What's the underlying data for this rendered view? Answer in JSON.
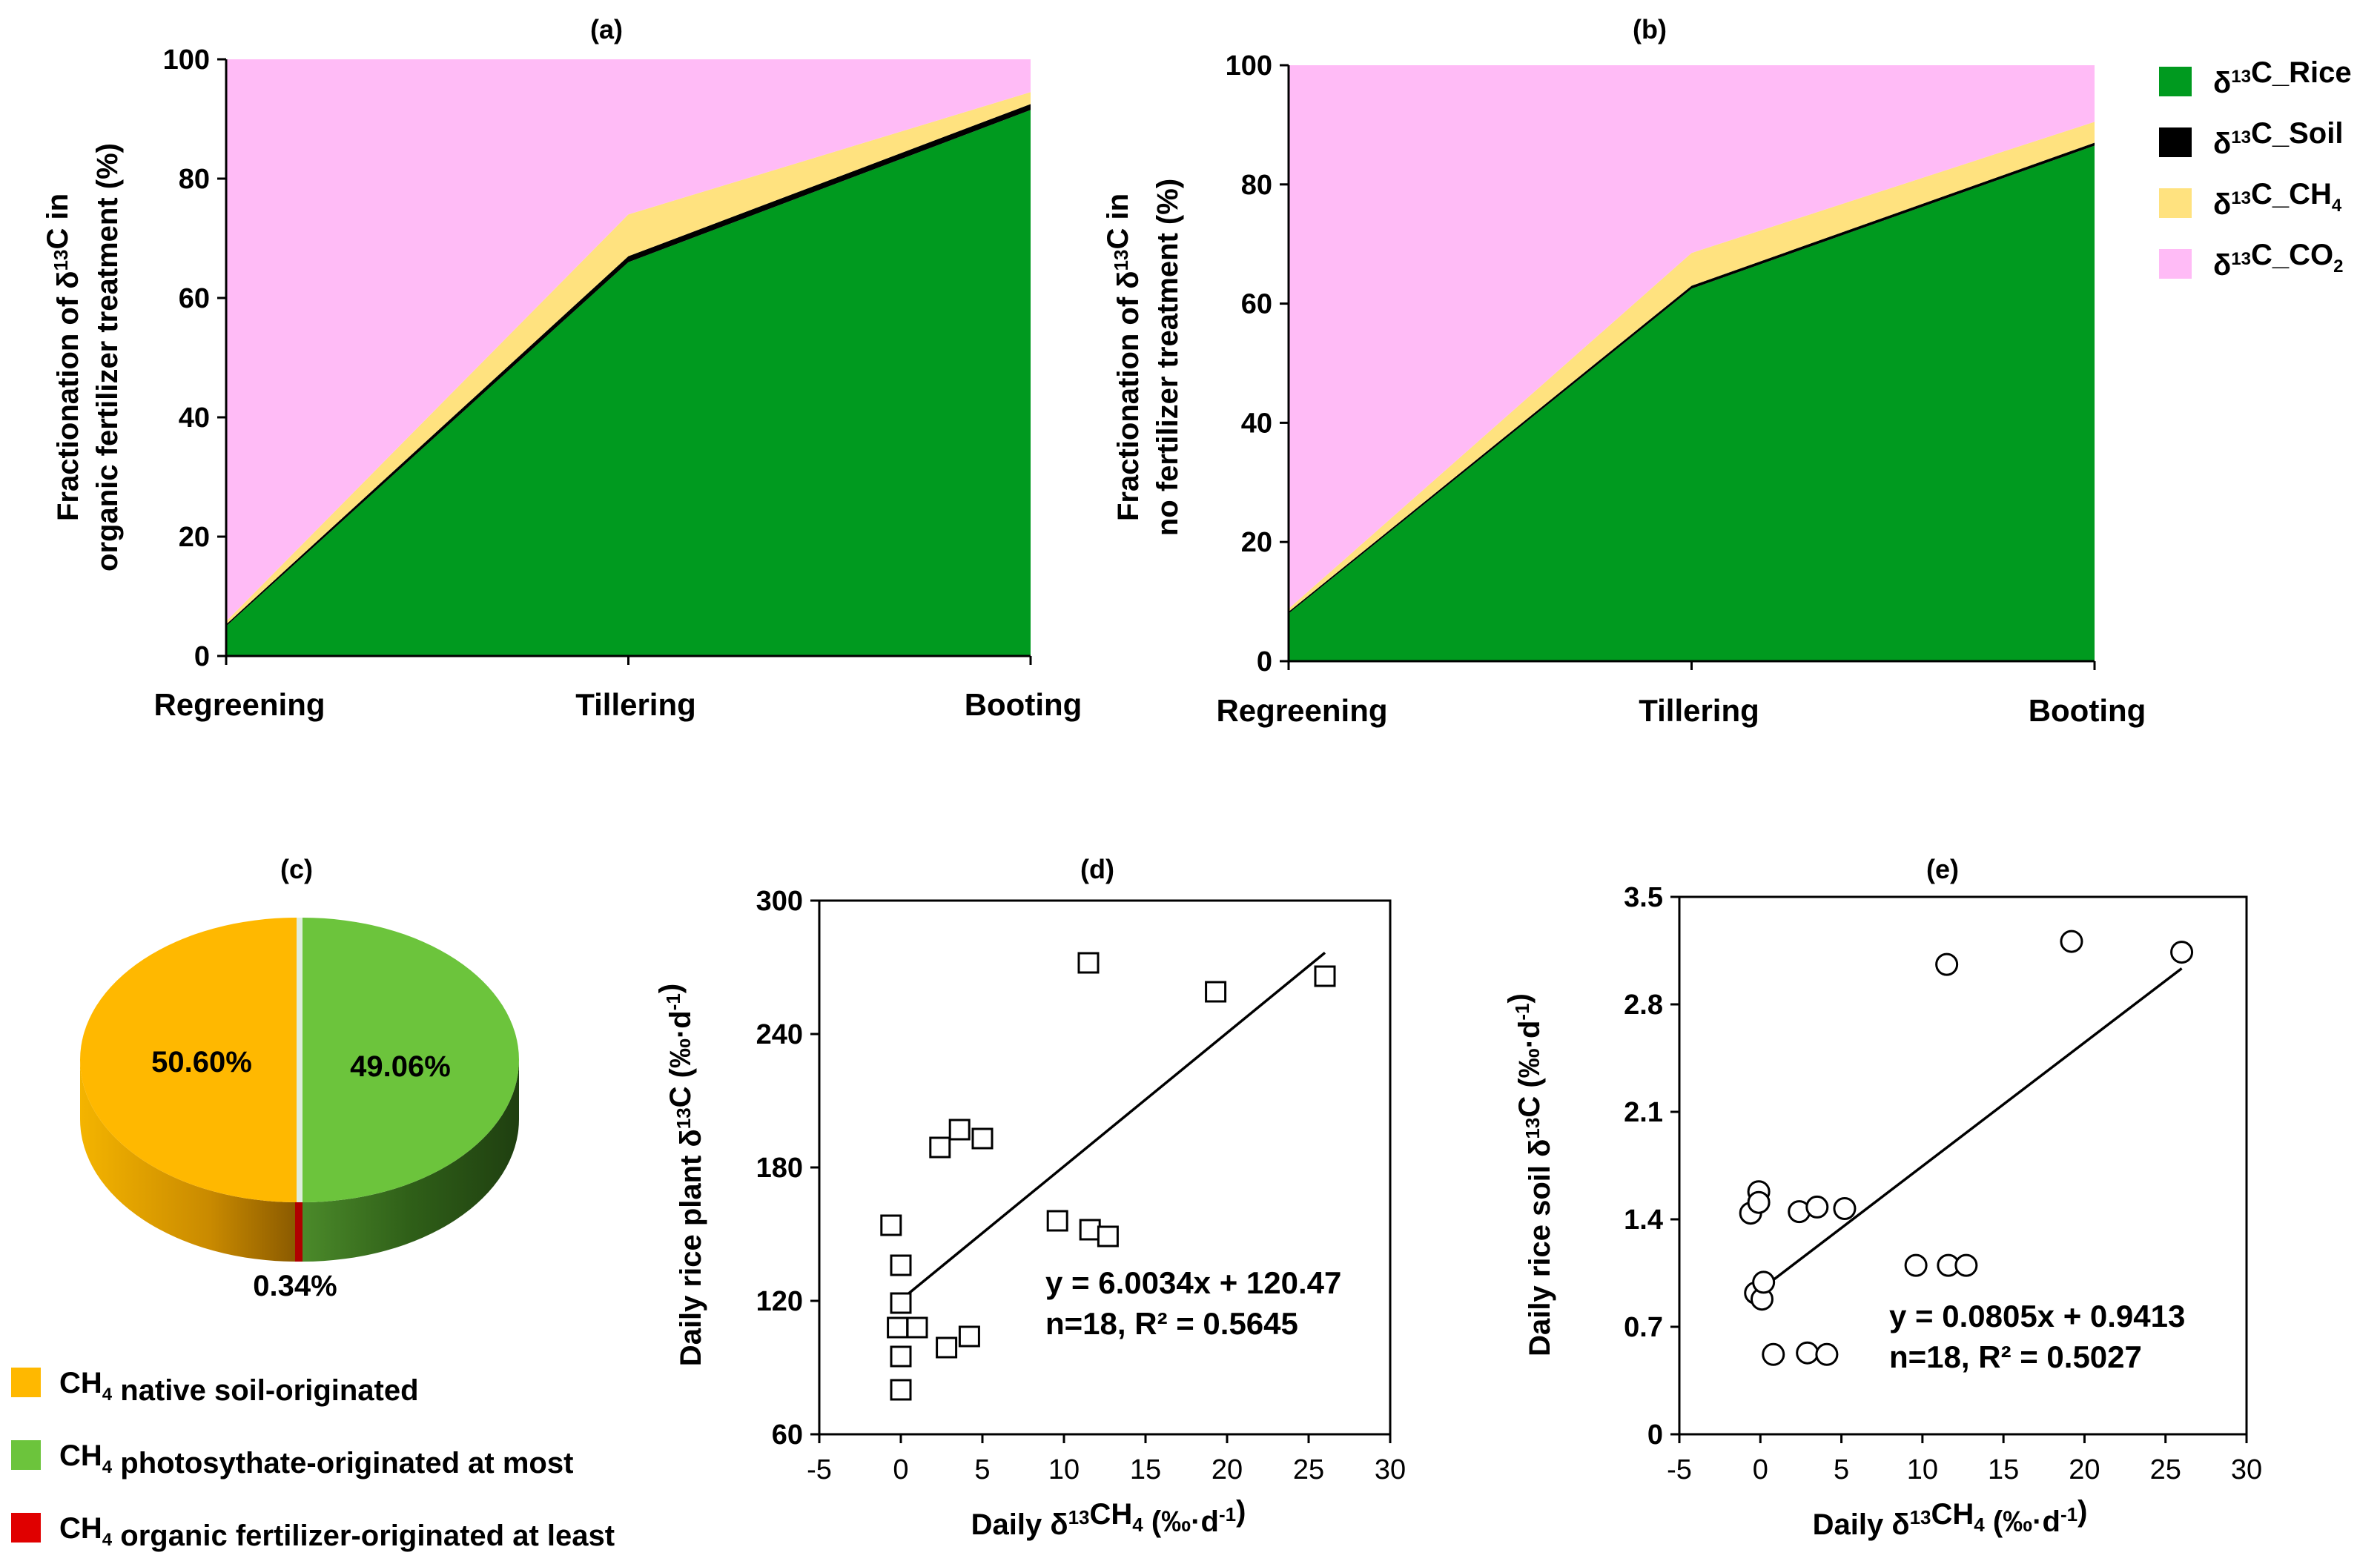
{
  "chart_data": [
    {
      "id": "a",
      "type": "area",
      "title": "(a)",
      "ylabel_line1": "Fractionation of δ13C in",
      "ylabel_line2": "organic fertilizer treatment (%)",
      "categories": [
        "Regreening",
        "Tillering",
        "Booting"
      ],
      "ylim": [
        0,
        100
      ],
      "yticks": [
        "0",
        "20",
        "40",
        "60",
        "80",
        "100"
      ],
      "series": [
        {
          "name": "δ13C_Rice",
          "values": [
            5,
            66,
            91.5
          ]
        },
        {
          "name": "δ13C_Soil",
          "values": [
            0.3,
            1,
            1
          ]
        },
        {
          "name": "δ13C_CH4",
          "values": [
            0.5,
            7,
            2
          ]
        },
        {
          "name": "δ13C_CO2",
          "values": [
            94.2,
            26,
            5.5
          ]
        }
      ]
    },
    {
      "id": "b",
      "type": "area",
      "title": "(b)",
      "ylabel_line1": "Fractionation of δ13C in",
      "ylabel_line2": "no fertilizer treatment (%)",
      "categories": [
        "Regreening",
        "Tillering",
        "Booting"
      ],
      "ylim": [
        0,
        100
      ],
      "yticks": [
        "0",
        "20",
        "40",
        "60",
        "80",
        "100"
      ],
      "series": [
        {
          "name": "δ13C_Rice",
          "values": [
            8,
            62.5,
            86.5
          ]
        },
        {
          "name": "δ13C_Soil",
          "values": [
            0.3,
            0.5,
            0.5
          ]
        },
        {
          "name": "δ13C_CH4",
          "values": [
            0.5,
            5.5,
            3.5
          ]
        },
        {
          "name": "δ13C_CO2",
          "values": [
            91.2,
            31.5,
            9.5
          ]
        }
      ]
    },
    {
      "id": "c",
      "type": "pie",
      "title": "(c)",
      "slices": [
        {
          "name": "CH4 native soil-originated",
          "value": 50.6,
          "label": "50.60%"
        },
        {
          "name": "CH4 photosythate-originated at most",
          "value": 49.06,
          "label": "49.06%"
        },
        {
          "name": "CH4 organic fertilizer-originated at least",
          "value": 0.34,
          "label": "0.34%"
        }
      ]
    },
    {
      "id": "d",
      "type": "scatter",
      "title": "(d)",
      "xlabel": "Daily δ13CH4 (‰·d-1)",
      "ylabel": "Daily rice plant δ13C (‰·d-1)",
      "xlim": [
        -5,
        30
      ],
      "ylim": [
        60,
        300
      ],
      "xticks": [
        "-5",
        "0",
        "5",
        "10",
        "15",
        "20",
        "25",
        "30"
      ],
      "yticks": [
        "60",
        "120",
        "180",
        "240",
        "300"
      ],
      "marker": "square",
      "points": [
        [
          -0.6,
          154
        ],
        [
          0,
          136
        ],
        [
          0,
          119
        ],
        [
          -0.2,
          108
        ],
        [
          1,
          108
        ],
        [
          0,
          95
        ],
        [
          0,
          80
        ],
        [
          2.8,
          99
        ],
        [
          4.2,
          104
        ],
        [
          2.4,
          189
        ],
        [
          3.6,
          197
        ],
        [
          5,
          193
        ],
        [
          9.6,
          156
        ],
        [
          11.6,
          152
        ],
        [
          12.7,
          149
        ],
        [
          11.5,
          272
        ],
        [
          19.3,
          259
        ],
        [
          26,
          266
        ]
      ],
      "fit": {
        "slope": 6.0034,
        "intercept": 120.47,
        "x_range": [
          0,
          26
        ]
      },
      "equation": "y = 6.0034x + 120.47",
      "stats": "n=18, R² = 0.5645"
    },
    {
      "id": "e",
      "type": "scatter",
      "title": "(e)",
      "xlabel": "Daily δ13CH4 (‰·d-1)",
      "ylabel": "Daily rice soil δ13C (‰·d-1)",
      "xlim": [
        -5,
        30
      ],
      "ylim": [
        0,
        3.5
      ],
      "xticks": [
        "-5",
        "0",
        "5",
        "10",
        "15",
        "20",
        "25",
        "30"
      ],
      "yticks": [
        "0",
        "0.7",
        "1.4",
        "2.1",
        "2.8",
        "3.5"
      ],
      "marker": "circle",
      "points": [
        [
          -0.6,
          1.44
        ],
        [
          -0.1,
          1.58
        ],
        [
          -0.1,
          1.51
        ],
        [
          -0.3,
          0.92
        ],
        [
          0.1,
          0.88
        ],
        [
          0.2,
          0.99
        ],
        [
          0.8,
          0.52
        ],
        [
          2.4,
          1.45
        ],
        [
          3.5,
          1.48
        ],
        [
          5.2,
          1.47
        ],
        [
          2.9,
          0.53
        ],
        [
          4.1,
          0.52
        ],
        [
          9.6,
          1.1
        ],
        [
          11.6,
          1.1
        ],
        [
          12.7,
          1.1
        ],
        [
          11.5,
          3.06
        ],
        [
          19.2,
          3.21
        ],
        [
          26,
          3.14
        ]
      ],
      "fit": {
        "slope": 0.0805,
        "intercept": 0.9413,
        "x_range": [
          0,
          26
        ]
      },
      "equation": "y = 0.0805x + 0.9413",
      "stats": "n=18, R² = 0.5027"
    }
  ],
  "legend_ab": [
    {
      "name": "δ13C_Rice",
      "color": "#009a1f"
    },
    {
      "name": "δ13C_Soil",
      "color": "#000000"
    },
    {
      "name": "δ13C_CH4",
      "color": "#ffe27f"
    },
    {
      "name": "δ13C_CO2",
      "color": "#ffbbf6"
    }
  ],
  "legend_c": [
    {
      "name": "CH4 native soil-originated",
      "color": "#ffb800"
    },
    {
      "name": "CH4 photosythate-originated at most",
      "color": "#6cc43c"
    },
    {
      "name": "CH4 organic fertilizer-originated at least",
      "color": "#e00000"
    }
  ]
}
